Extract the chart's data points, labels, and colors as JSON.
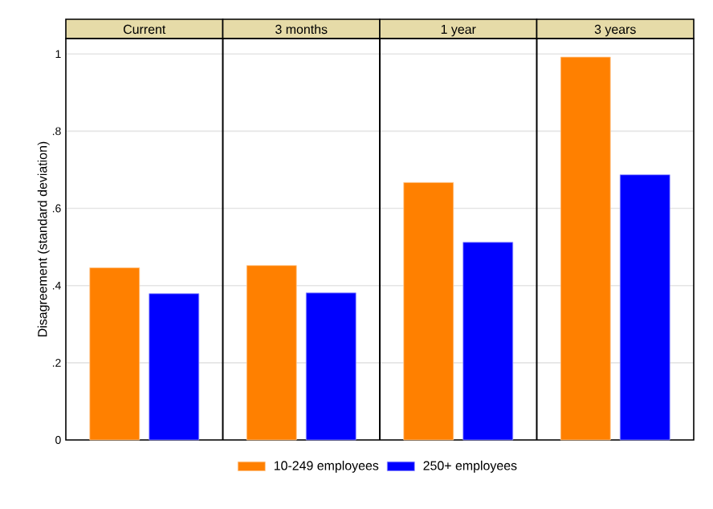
{
  "chart_data": {
    "type": "bar",
    "ylabel": "Disagreement (standard deviation)",
    "categories": [
      "Current",
      "3 months",
      "1 year",
      "3 years"
    ],
    "series": [
      {
        "name": "10-249 employees",
        "color": "#ff8000",
        "values": [
          0.446,
          0.452,
          0.667,
          0.992
        ]
      },
      {
        "name": "250+ employees",
        "color": "#0000ff",
        "values": [
          0.379,
          0.381,
          0.512,
          0.687
        ]
      }
    ],
    "ylim": [
      0,
      1.04
    ],
    "yticks": [
      0,
      {
        "value": 0.2,
        "label": ".2"
      },
      {
        "value": 0.4,
        "label": ".4"
      },
      {
        "value": 0.6,
        "label": ".6"
      },
      {
        "value": 0.8,
        "label": ".8"
      },
      1
    ],
    "grid": "y",
    "legend": "bottom"
  }
}
